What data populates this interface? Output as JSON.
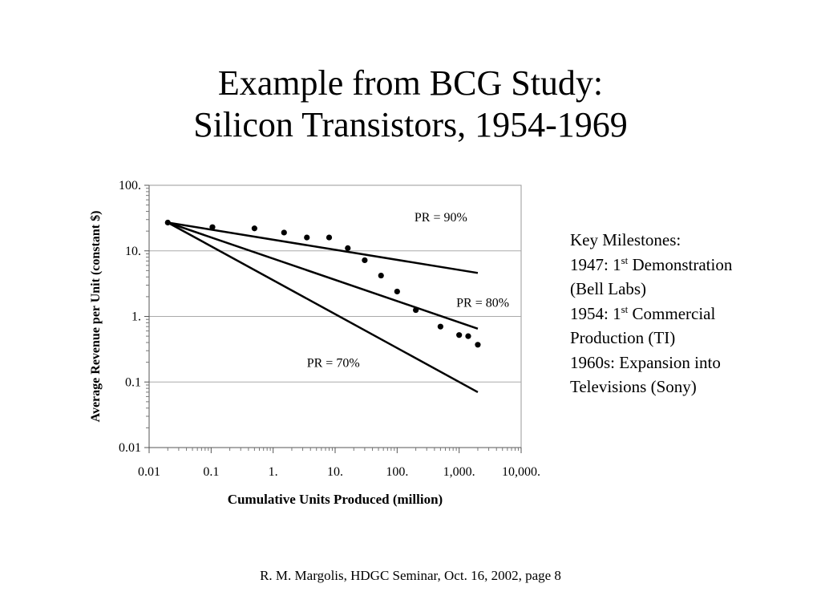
{
  "slide": {
    "title_line1": "Example from BCG Study:",
    "title_line2": "Silicon Transistors, 1954-1969",
    "footer": "R. M. Margolis, HDGC Seminar, Oct. 16, 2002, page 8"
  },
  "milestones": {
    "heading": "Key Milestones:",
    "m1_year": "1947: 1",
    "m1_sup": "st",
    "m1_rest": " Demonstration",
    "m1_line2": "(Bell Labs)",
    "m2_year": "1954:  1",
    "m2_sup": "st",
    "m2_rest": " Commercial",
    "m2_line2": "Production (TI)",
    "m3_line1": "1960s:  Expansion into",
    "m3_line2": "Televisions (Sony)"
  },
  "chart_data": {
    "type": "scatter",
    "xscale": "log",
    "yscale": "log",
    "xlabel": "Cumulative Units Produced (million)",
    "ylabel": "Average Revenue per Unit (constant $)",
    "xlim": [
      0.01,
      10000
    ],
    "ylim": [
      0.01,
      100
    ],
    "x_ticks": [
      0.01,
      0.1,
      1,
      10,
      100,
      1000,
      10000
    ],
    "x_tick_labels": [
      "0.01",
      "0.1",
      "1.",
      "10.",
      "100.",
      "1,000.",
      "10,000."
    ],
    "y_ticks": [
      0.01,
      0.1,
      1,
      10,
      100
    ],
    "y_tick_labels": [
      "0.01",
      "0.1",
      "1.",
      "10.",
      "100."
    ],
    "grid": "horizontal major",
    "points": [
      {
        "x": 0.02,
        "y": 27
      },
      {
        "x": 0.105,
        "y": 23
      },
      {
        "x": 0.5,
        "y": 22
      },
      {
        "x": 1.5,
        "y": 19
      },
      {
        "x": 3.5,
        "y": 16
      },
      {
        "x": 8,
        "y": 16
      },
      {
        "x": 16,
        "y": 11
      },
      {
        "x": 30,
        "y": 7.2
      },
      {
        "x": 55,
        "y": 4.2
      },
      {
        "x": 100,
        "y": 2.4
      },
      {
        "x": 200,
        "y": 1.25
      },
      {
        "x": 500,
        "y": 0.7
      },
      {
        "x": 1000,
        "y": 0.52
      },
      {
        "x": 1400,
        "y": 0.5
      },
      {
        "x": 2000,
        "y": 0.37
      }
    ],
    "lines": [
      {
        "label": "PR = 90%",
        "x0": 0.02,
        "y0": 27,
        "x1": 2000,
        "y1": 4.6,
        "label_x": 190,
        "label_y": 28
      },
      {
        "label": "PR = 80%",
        "x0": 0.02,
        "y0": 27,
        "x1": 2000,
        "y1": 0.65,
        "label_x": 900,
        "label_y": 1.4
      },
      {
        "label": "PR = 70%",
        "x0": 0.02,
        "y0": 27,
        "x1": 2000,
        "y1": 0.07,
        "label_x": 3.5,
        "label_y": 0.17
      }
    ]
  }
}
